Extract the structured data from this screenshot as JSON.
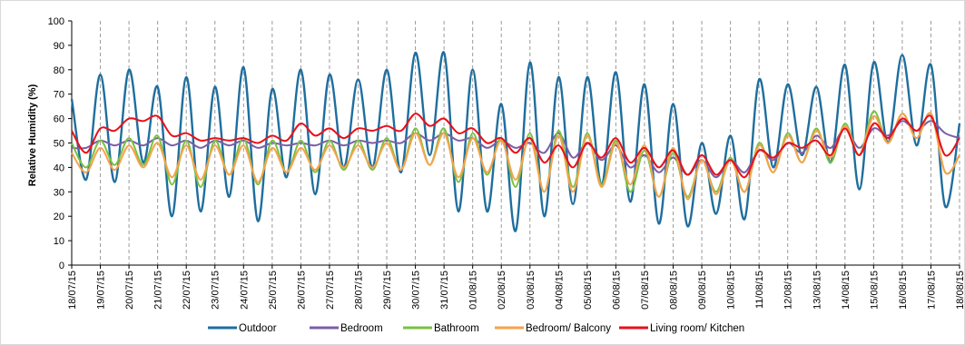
{
  "chart_data": {
    "type": "line",
    "ylabel": "Relative Humidity (%)",
    "xlabel": "",
    "ylim": [
      0,
      100
    ],
    "y_ticks": [
      "0",
      "10",
      "20",
      "30",
      "40",
      "50",
      "60",
      "70",
      "80",
      "90",
      "100"
    ],
    "x_ticks": [
      "18/07/15",
      "19/07/15",
      "20/07/15",
      "21/07/15",
      "22/07/15",
      "23/07/15",
      "24/07/15",
      "25/07/15",
      "26/07/15",
      "27/07/15",
      "28/07/15",
      "29/07/15",
      "30/07/15",
      "31/07/15",
      "01/08/15",
      "02/08/15",
      "03/08/15",
      "04/08/15",
      "05/08/15",
      "06/08/15",
      "07/08/15",
      "08/08/15",
      "09/08/15",
      "10/08/15",
      "11/08/15",
      "12/08/15",
      "13/08/15",
      "14/08/15",
      "15/08/15",
      "16/08/15",
      "17/08/15",
      "18/08/15"
    ],
    "grid": {
      "vertical": "dashed",
      "horizontal": "none"
    },
    "legend_position": "bottom",
    "sample_times": [
      "18/07 00:00",
      "18/07 12:00",
      "19/07 00:00",
      "19/07 12:00",
      "20/07 00:00",
      "20/07 12:00",
      "21/07 00:00",
      "21/07 12:00",
      "22/07 00:00",
      "22/07 12:00",
      "23/07 00:00",
      "23/07 12:00",
      "24/07 00:00",
      "24/07 12:00",
      "25/07 00:00",
      "25/07 12:00",
      "26/07 00:00",
      "26/07 12:00",
      "27/07 00:00",
      "27/07 12:00",
      "28/07 00:00",
      "28/07 12:00",
      "29/07 00:00",
      "29/07 12:00",
      "30/07 00:00",
      "30/07 12:00",
      "31/07 00:00",
      "31/07 12:00",
      "01/08 00:00",
      "01/08 12:00",
      "02/08 00:00",
      "02/08 12:00",
      "03/08 00:00",
      "03/08 12:00",
      "04/08 00:00",
      "04/08 12:00",
      "05/08 00:00",
      "05/08 12:00",
      "06/08 00:00",
      "06/08 12:00",
      "07/08 00:00",
      "07/08 12:00",
      "08/08 00:00",
      "08/08 12:00",
      "09/08 00:00",
      "09/08 12:00",
      "10/08 00:00",
      "10/08 12:00",
      "11/08 00:00",
      "11/08 12:00",
      "12/08 00:00",
      "12/08 12:00",
      "13/08 00:00",
      "13/08 12:00",
      "14/08 00:00",
      "14/08 12:00",
      "15/08 00:00",
      "15/08 12:00",
      "16/08 00:00",
      "16/08 12:00",
      "17/08 00:00",
      "17/08 12:00",
      "18/08 00:00"
    ],
    "series": [
      {
        "name": "Outdoor",
        "color": "#1f6e9e",
        "values": [
          68,
          35,
          78,
          34,
          80,
          42,
          73,
          20,
          77,
          22,
          73,
          28,
          81,
          18,
          72,
          36,
          80,
          29,
          78,
          40,
          76,
          40,
          80,
          38,
          87,
          45,
          87,
          22,
          80,
          22,
          66,
          14,
          83,
          20,
          77,
          25,
          77,
          33,
          79,
          26,
          74,
          17,
          66,
          16,
          50,
          21,
          53,
          19,
          76,
          40,
          74,
          45,
          73,
          42,
          82,
          31,
          83,
          50,
          86,
          49,
          82,
          24,
          58
        ]
      },
      {
        "name": "Bedroom",
        "color": "#7b5ea7",
        "values": [
          48,
          48,
          51,
          49,
          51,
          49,
          52,
          49,
          51,
          48,
          51,
          49,
          51,
          48,
          50,
          49,
          50,
          49,
          51,
          49,
          51,
          50,
          51,
          50,
          54,
          51,
          54,
          51,
          52,
          48,
          51,
          48,
          50,
          46,
          54,
          44,
          50,
          43,
          49,
          40,
          45,
          38,
          44,
          37,
          43,
          36,
          43,
          38,
          47,
          43,
          50,
          46,
          53,
          48,
          56,
          48,
          56,
          53,
          59,
          55,
          59,
          54,
          52
        ]
      },
      {
        "name": "Bathroom",
        "color": "#7ac143",
        "values": [
          50,
          40,
          51,
          41,
          52,
          41,
          53,
          33,
          51,
          32,
          51,
          37,
          52,
          33,
          51,
          38,
          51,
          38,
          51,
          39,
          51,
          39,
          52,
          39,
          56,
          41,
          56,
          34,
          54,
          37,
          52,
          32,
          54,
          30,
          55,
          32,
          54,
          33,
          51,
          30,
          47,
          28,
          46,
          28,
          43,
          30,
          44,
          30,
          50,
          38,
          54,
          42,
          56,
          42,
          58,
          45,
          63,
          50,
          62,
          52,
          62,
          38,
          45
        ]
      },
      {
        "name": "Bedroom/ Balcony",
        "color": "#f7a24b",
        "values": [
          46,
          38,
          48,
          39,
          49,
          40,
          50,
          36,
          49,
          35,
          49,
          37,
          49,
          34,
          48,
          38,
          48,
          39,
          49,
          40,
          49,
          40,
          50,
          39,
          54,
          41,
          54,
          36,
          52,
          38,
          51,
          35,
          52,
          30,
          53,
          30,
          53,
          32,
          50,
          33,
          49,
          28,
          48,
          27,
          43,
          29,
          43,
          30,
          49,
          38,
          53,
          42,
          55,
          44,
          57,
          45,
          61,
          50,
          62,
          52,
          62,
          38,
          45
        ]
      },
      {
        "name": "Living room/ Kitchen",
        "color": "#e8101a",
        "values": [
          55,
          46,
          56,
          55,
          60,
          59,
          61,
          53,
          54,
          51,
          52,
          51,
          52,
          50,
          53,
          51,
          58,
          53,
          56,
          52,
          56,
          55,
          57,
          55,
          62,
          57,
          60,
          54,
          56,
          50,
          52,
          46,
          52,
          42,
          49,
          40,
          50,
          44,
          52,
          42,
          48,
          40,
          47,
          37,
          45,
          37,
          43,
          36,
          47,
          44,
          50,
          48,
          51,
          45,
          56,
          45,
          58,
          52,
          60,
          55,
          61,
          45,
          52
        ]
      }
    ]
  }
}
